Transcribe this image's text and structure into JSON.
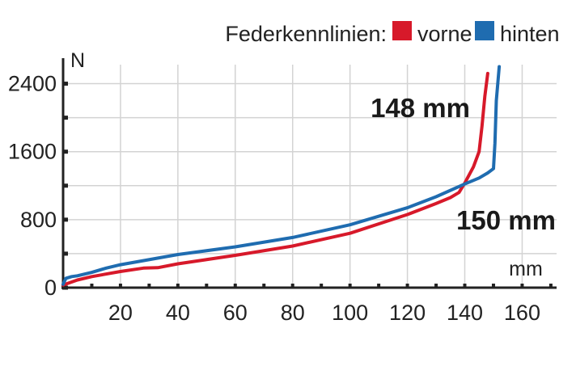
{
  "chart_data": {
    "type": "line",
    "legend": {
      "title": "Federkennlinien:",
      "placement": "top-right"
    },
    "xlabel": "mm",
    "ylabel": "N",
    "xlim": [
      0,
      172
    ],
    "ylim": [
      0,
      2700
    ],
    "xticks": [
      20,
      40,
      60,
      80,
      100,
      120,
      140,
      160
    ],
    "yticks": [
      0,
      800,
      1600,
      2400
    ],
    "ytick_marks": [
      0,
      400,
      800,
      1200,
      1600,
      2000,
      2400
    ],
    "xtick_marks": [
      0,
      10,
      20,
      30,
      40,
      50,
      60,
      70,
      80,
      90,
      100,
      110,
      120,
      130,
      140,
      150,
      160,
      170
    ],
    "grid": true,
    "series": [
      {
        "name": "vorne",
        "color": "#d7192a",
        "x": [
          0,
          5,
          10,
          20,
          28,
          33,
          40,
          60,
          80,
          100,
          120,
          130,
          135,
          138,
          140,
          143,
          145,
          146,
          147,
          148
        ],
        "y": [
          30,
          90,
          130,
          190,
          230,
          235,
          280,
          380,
          490,
          640,
          860,
          990,
          1060,
          1120,
          1230,
          1420,
          1600,
          1900,
          2250,
          2520
        ]
      },
      {
        "name": "hinten",
        "color": "#1f6cb0",
        "x": [
          0,
          1,
          3,
          5,
          10,
          15,
          20,
          40,
          60,
          80,
          100,
          120,
          130,
          140,
          145,
          148,
          150,
          150.5,
          151,
          152
        ],
        "y": [
          40,
          110,
          130,
          140,
          180,
          230,
          270,
          390,
          480,
          590,
          740,
          940,
          1070,
          1220,
          1290,
          1350,
          1400,
          1700,
          2200,
          2600
        ]
      }
    ],
    "annotations": [
      {
        "id": "vorne",
        "text": "148 mm"
      },
      {
        "id": "hinten",
        "text": "150 mm"
      }
    ]
  }
}
